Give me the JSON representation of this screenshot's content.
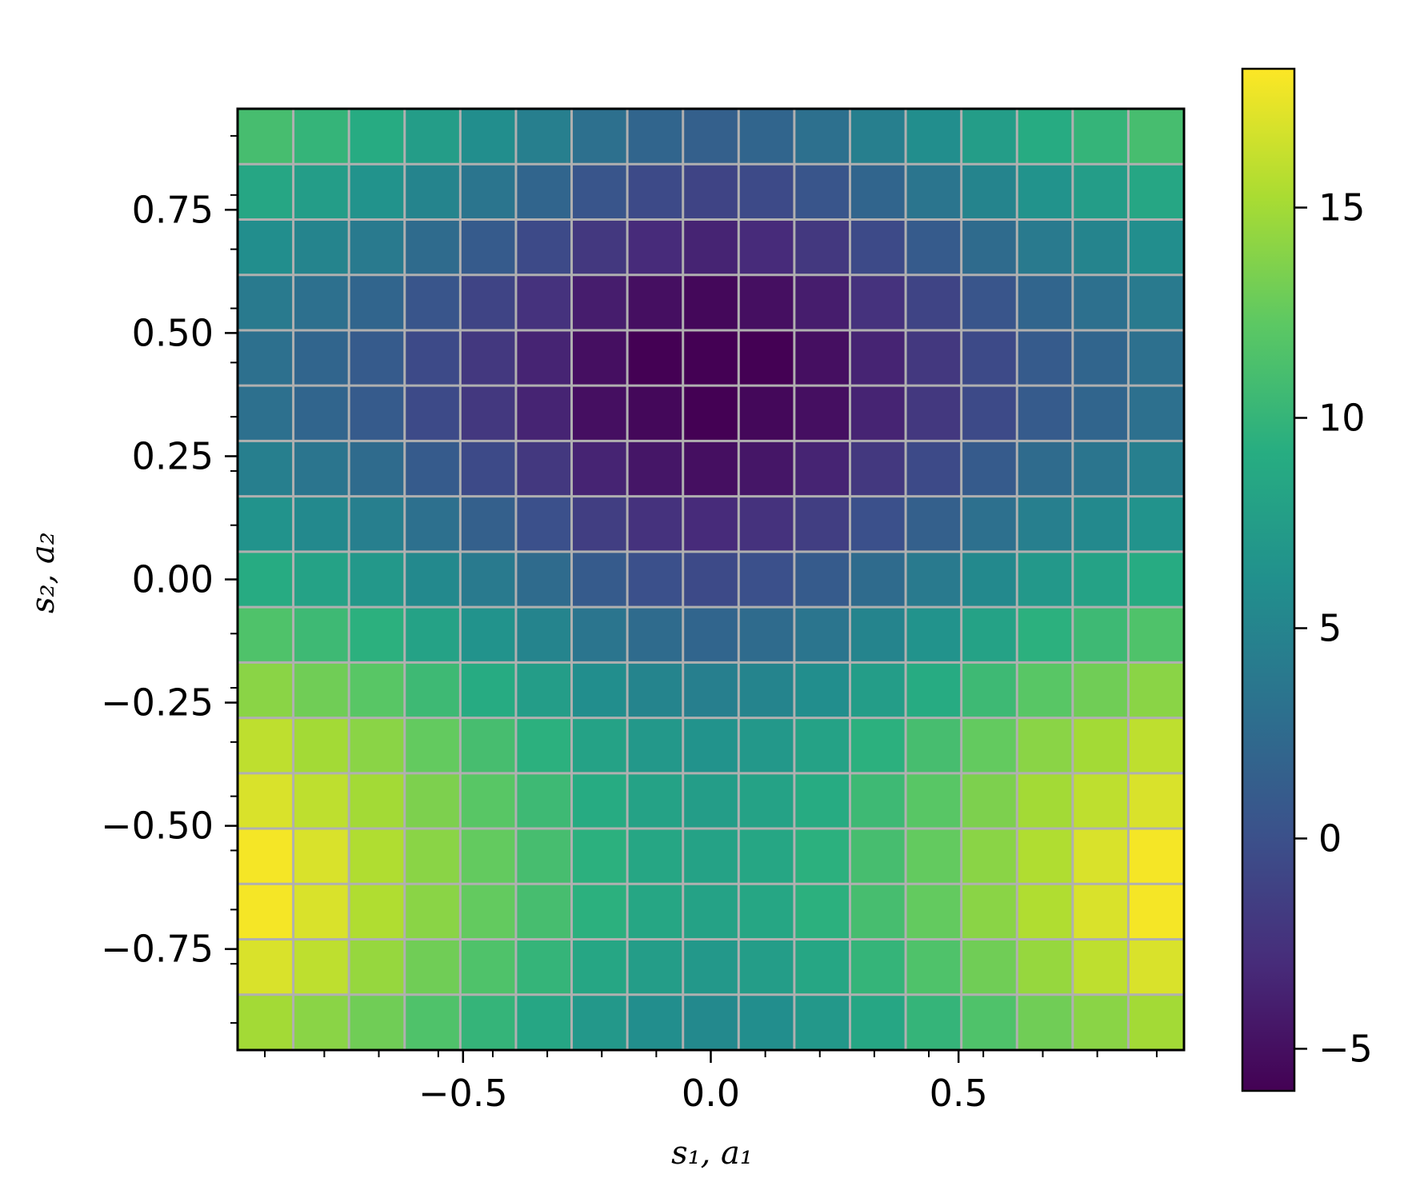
{
  "chart_data": {
    "type": "heatmap",
    "title": "",
    "xlabel": "s₁, a₁",
    "ylabel": "s₂, a₂",
    "xlim": [
      -0.955,
      0.955
    ],
    "ylim": [
      -0.955,
      0.955
    ],
    "grid": true,
    "grid_color": "#b0b0b0",
    "colormap": "viridis",
    "colorbar_range": [
      -6.0,
      18.3
    ],
    "x_ticks": [
      -0.5,
      0.0,
      0.5
    ],
    "x_tick_labels": [
      "−0.5",
      "0.0",
      "0.5"
    ],
    "y_ticks": [
      0.75,
      0.5,
      0.25,
      0.0,
      -0.25,
      -0.5,
      -0.75
    ],
    "y_tick_labels": [
      "0.75",
      "0.50",
      "0.25",
      "0.00",
      "−0.25",
      "−0.50",
      "−0.75"
    ],
    "colorbar_ticks": [
      15,
      10,
      5,
      0,
      -5
    ],
    "colorbar_tick_labels": [
      "15",
      "10",
      "5",
      "0",
      "−5"
    ],
    "x_centers": [
      -0.9,
      -0.78,
      -0.67,
      -0.55,
      -0.44,
      -0.33,
      -0.22,
      -0.11,
      0.0,
      0.11,
      0.22,
      0.33,
      0.44,
      0.55,
      0.67,
      0.78,
      0.9
    ],
    "y_centers": [
      0.9,
      0.78,
      0.67,
      0.55,
      0.44,
      0.33,
      0.22,
      0.11,
      0.0,
      -0.11,
      -0.22,
      -0.33,
      -0.44,
      -0.55,
      -0.67,
      -0.78,
      -0.9
    ],
    "values": [
      [
        11.0,
        10.0,
        9.0,
        7.5,
        6.0,
        4.5,
        3.0,
        2.0,
        1.5,
        2.0,
        3.0,
        4.5,
        6.0,
        7.5,
        9.0,
        10.0,
        11.0
      ],
      [
        8.5,
        7.5,
        6.5,
        5.0,
        3.5,
        2.0,
        0.5,
        -0.5,
        -1.0,
        -0.5,
        0.5,
        2.0,
        3.5,
        5.0,
        6.5,
        7.5,
        8.5
      ],
      [
        6.0,
        5.0,
        4.0,
        2.5,
        1.0,
        -0.5,
        -2.0,
        -3.0,
        -3.5,
        -3.0,
        -2.0,
        -0.5,
        1.0,
        2.5,
        4.0,
        5.0,
        6.0
      ],
      [
        4.0,
        3.0,
        2.0,
        0.5,
        -1.0,
        -2.5,
        -4.0,
        -5.0,
        -5.5,
        -5.0,
        -4.0,
        -2.5,
        -1.0,
        0.5,
        2.0,
        3.0,
        4.0
      ],
      [
        3.0,
        2.0,
        1.0,
        -0.5,
        -2.0,
        -3.5,
        -5.0,
        -6.0,
        -6.0,
        -6.0,
        -5.0,
        -3.5,
        -2.0,
        -0.5,
        1.0,
        2.0,
        3.0
      ],
      [
        3.0,
        2.0,
        1.0,
        -0.5,
        -2.0,
        -3.5,
        -5.0,
        -5.5,
        -6.0,
        -5.5,
        -5.0,
        -3.5,
        -2.0,
        -0.5,
        1.0,
        2.0,
        3.0
      ],
      [
        4.5,
        3.5,
        2.5,
        1.0,
        -0.5,
        -2.0,
        -3.5,
        -4.5,
        -5.0,
        -4.5,
        -3.5,
        -2.0,
        -0.5,
        1.0,
        2.5,
        3.5,
        4.5
      ],
      [
        6.5,
        5.5,
        4.5,
        3.0,
        1.5,
        0.0,
        -1.5,
        -2.5,
        -3.0,
        -2.5,
        -1.5,
        0.0,
        1.5,
        3.0,
        4.5,
        5.5,
        6.5
      ],
      [
        9.0,
        8.0,
        7.0,
        5.5,
        4.0,
        2.5,
        1.0,
        0.0,
        -0.5,
        0.0,
        1.0,
        2.5,
        4.0,
        5.5,
        7.0,
        8.0,
        9.0
      ],
      [
        11.5,
        10.5,
        9.5,
        8.0,
        6.5,
        5.0,
        3.5,
        2.5,
        2.0,
        2.5,
        3.5,
        5.0,
        6.5,
        8.0,
        9.5,
        10.5,
        11.5
      ],
      [
        14.0,
        13.0,
        12.0,
        10.5,
        9.0,
        7.5,
        6.0,
        5.0,
        4.5,
        5.0,
        6.0,
        7.5,
        9.0,
        10.5,
        12.0,
        13.0,
        14.0
      ],
      [
        16.0,
        15.0,
        14.0,
        12.5,
        11.0,
        9.5,
        8.0,
        7.0,
        6.5,
        7.0,
        8.0,
        9.5,
        11.0,
        12.5,
        14.0,
        15.0,
        16.0
      ],
      [
        17.0,
        16.0,
        15.0,
        13.5,
        12.0,
        10.5,
        9.0,
        8.0,
        7.5,
        8.0,
        9.0,
        10.5,
        12.0,
        13.5,
        15.0,
        16.0,
        17.0
      ],
      [
        18.0,
        17.0,
        15.5,
        14.0,
        12.5,
        11.0,
        9.5,
        8.5,
        8.0,
        8.5,
        9.5,
        11.0,
        12.5,
        14.0,
        15.5,
        17.0,
        18.0
      ],
      [
        18.0,
        17.0,
        15.5,
        14.0,
        12.5,
        11.0,
        9.5,
        8.5,
        8.0,
        8.5,
        9.5,
        11.0,
        12.5,
        14.0,
        15.5,
        17.0,
        18.0
      ],
      [
        17.0,
        16.0,
        14.5,
        13.0,
        11.5,
        10.0,
        8.5,
        7.5,
        7.0,
        7.5,
        8.5,
        10.0,
        11.5,
        13.0,
        14.5,
        16.0,
        17.0
      ],
      [
        15.0,
        14.0,
        13.0,
        11.5,
        10.0,
        8.5,
        7.0,
        6.0,
        5.5,
        6.0,
        7.0,
        8.5,
        10.0,
        11.5,
        13.0,
        14.0,
        15.0
      ]
    ]
  }
}
